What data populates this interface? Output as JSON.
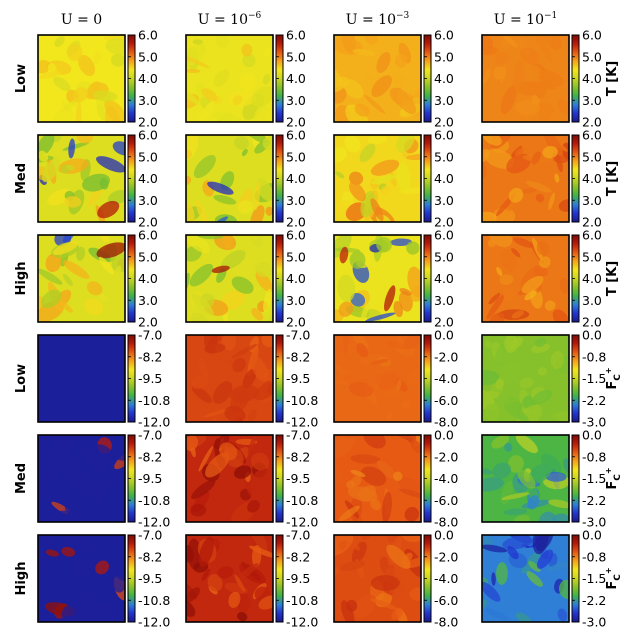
{
  "figure": {
    "column_headers": [
      "U = 0",
      "U = 10^-6",
      "U = 10^-3",
      "U = 10^-1"
    ],
    "column_header_parts": [
      {
        "base": "U = 0",
        "exp": ""
      },
      {
        "base": "U = 10",
        "exp": "−6"
      },
      {
        "base": "U = 10",
        "exp": "−3"
      },
      {
        "base": "U = 10",
        "exp": "−1"
      }
    ],
    "row_labels": [
      "Low",
      "Med",
      "High",
      "Low",
      "Med",
      "High"
    ],
    "colorbar_labels": [
      {
        "base": "T [K]",
        "sub": ""
      },
      {
        "base": "T [K]",
        "sub": ""
      },
      {
        "base": "T [K]",
        "sub": ""
      },
      {
        "base": "F",
        "sub": "C",
        "sup": "+"
      },
      {
        "base": "F",
        "sub": "C",
        "sup": "+"
      },
      {
        "base": "F",
        "sub": "C",
        "sup": "+"
      }
    ]
  },
  "chart_data": {
    "type": "heatmap",
    "colormap": [
      "#1a1a8c",
      "#2233d0",
      "#2f7fd6",
      "#3fb24a",
      "#86c12b",
      "#c9d523",
      "#f2e61d",
      "#f4a21a",
      "#e65a14",
      "#b81b0b",
      "#7d0a04"
    ],
    "panels": [
      {
        "row": 0,
        "col": 0,
        "ticks": [
          "6.0",
          "5.0",
          "4.0",
          "3.0",
          "2.0"
        ],
        "level": 0.6,
        "spread": 0.07,
        "outlier": 0.0
      },
      {
        "row": 0,
        "col": 1,
        "ticks": [
          "6.0",
          "5.0",
          "4.0",
          "3.0",
          "2.0"
        ],
        "level": 0.58,
        "spread": 0.08,
        "outlier": 0.0
      },
      {
        "row": 0,
        "col": 2,
        "ticks": [
          "6.0",
          "5.0",
          "4.0",
          "3.0",
          "2.0"
        ],
        "level": 0.68,
        "spread": 0.05,
        "outlier": 0.0
      },
      {
        "row": 0,
        "col": 3,
        "ticks": [
          "6.0",
          "5.0",
          "4.0",
          "3.0",
          "2.0"
        ],
        "level": 0.74,
        "spread": 0.02,
        "outlier": 0.0
      },
      {
        "row": 1,
        "col": 0,
        "ticks": [
          "6.0",
          "5.0",
          "4.0",
          "3.0",
          "2.0"
        ],
        "level": 0.55,
        "spread": 0.18,
        "outlier": 0.18
      },
      {
        "row": 1,
        "col": 1,
        "ticks": [
          "6.0",
          "5.0",
          "4.0",
          "3.0",
          "2.0"
        ],
        "level": 0.55,
        "spread": 0.18,
        "outlier": 0.18
      },
      {
        "row": 1,
        "col": 2,
        "ticks": [
          "6.0",
          "5.0",
          "4.0",
          "3.0",
          "2.0"
        ],
        "level": 0.62,
        "spread": 0.16,
        "outlier": 0.1
      },
      {
        "row": 1,
        "col": 3,
        "ticks": [
          "6.0",
          "5.0",
          "4.0",
          "3.0",
          "2.0"
        ],
        "level": 0.76,
        "spread": 0.07,
        "outlier": 0.0
      },
      {
        "row": 2,
        "col": 0,
        "ticks": [
          "6.0",
          "5.0",
          "4.0",
          "3.0",
          "2.0"
        ],
        "level": 0.55,
        "spread": 0.18,
        "outlier": 0.12
      },
      {
        "row": 2,
        "col": 1,
        "ticks": [
          "6.0",
          "5.0",
          "4.0",
          "3.0",
          "2.0"
        ],
        "level": 0.55,
        "spread": 0.18,
        "outlier": 0.1
      },
      {
        "row": 2,
        "col": 2,
        "ticks": [
          "6.0",
          "5.0",
          "4.0",
          "3.0",
          "2.0"
        ],
        "level": 0.58,
        "spread": 0.18,
        "outlier": 0.12
      },
      {
        "row": 2,
        "col": 3,
        "ticks": [
          "6.0",
          "5.0",
          "4.0",
          "3.0",
          "2.0"
        ],
        "level": 0.76,
        "spread": 0.08,
        "outlier": 0.0
      },
      {
        "row": 3,
        "col": 0,
        "ticks": [
          "-7.0",
          "-8.2",
          "-9.5",
          "-10.8",
          "-12.0"
        ],
        "level": 0.02,
        "spread": 0.0,
        "outlier": 0.0
      },
      {
        "row": 3,
        "col": 1,
        "ticks": [
          "-7.0",
          "-8.2",
          "-9.5",
          "-10.8",
          "-12.0"
        ],
        "level": 0.83,
        "spread": 0.04,
        "outlier": 0.0
      },
      {
        "row": 3,
        "col": 2,
        "ticks": [
          "0.0",
          "-2.0",
          "-4.0",
          "-6.0",
          "-8.0"
        ],
        "level": 0.78,
        "spread": 0.02,
        "outlier": 0.0
      },
      {
        "row": 3,
        "col": 3,
        "ticks": [
          "0.0",
          "-0.8",
          "-1.5",
          "-2.2",
          "-3.0"
        ],
        "level": 0.4,
        "spread": 0.04,
        "outlier": 0.0
      },
      {
        "row": 4,
        "col": 0,
        "ticks": [
          "-7.0",
          "-8.2",
          "-9.5",
          "-10.8",
          "-12.0"
        ],
        "level": 0.02,
        "spread": 0.0,
        "outlier": 0.0,
        "blobs": 0.12
      },
      {
        "row": 4,
        "col": 1,
        "ticks": [
          "-7.0",
          "-8.2",
          "-9.5",
          "-10.8",
          "-12.0"
        ],
        "level": 0.88,
        "spread": 0.1,
        "outlier": 0.0
      },
      {
        "row": 4,
        "col": 2,
        "ticks": [
          "0.0",
          "-2.0",
          "-4.0",
          "-6.0",
          "-8.0"
        ],
        "level": 0.8,
        "spread": 0.06,
        "outlier": 0.0
      },
      {
        "row": 4,
        "col": 3,
        "ticks": [
          "0.0",
          "-0.8",
          "-1.5",
          "-2.2",
          "-3.0"
        ],
        "level": 0.32,
        "spread": 0.18,
        "outlier": 0.0
      },
      {
        "row": 5,
        "col": 0,
        "ticks": [
          "-7.0",
          "-8.2",
          "-9.5",
          "-10.8",
          "-12.0"
        ],
        "level": 0.02,
        "spread": 0.0,
        "outlier": 0.0,
        "blobs": 0.3
      },
      {
        "row": 5,
        "col": 1,
        "ticks": [
          "-7.0",
          "-8.2",
          "-9.5",
          "-10.8",
          "-12.0"
        ],
        "level": 0.88,
        "spread": 0.1,
        "outlier": 0.0
      },
      {
        "row": 5,
        "col": 2,
        "ticks": [
          "0.0",
          "-2.0",
          "-4.0",
          "-6.0",
          "-8.0"
        ],
        "level": 0.82,
        "spread": 0.06,
        "outlier": 0.0
      },
      {
        "row": 5,
        "col": 3,
        "ticks": [
          "0.0",
          "-0.8",
          "-1.5",
          "-2.2",
          "-3.0"
        ],
        "level": 0.2,
        "spread": 0.18,
        "outlier": 0.0
      }
    ]
  }
}
